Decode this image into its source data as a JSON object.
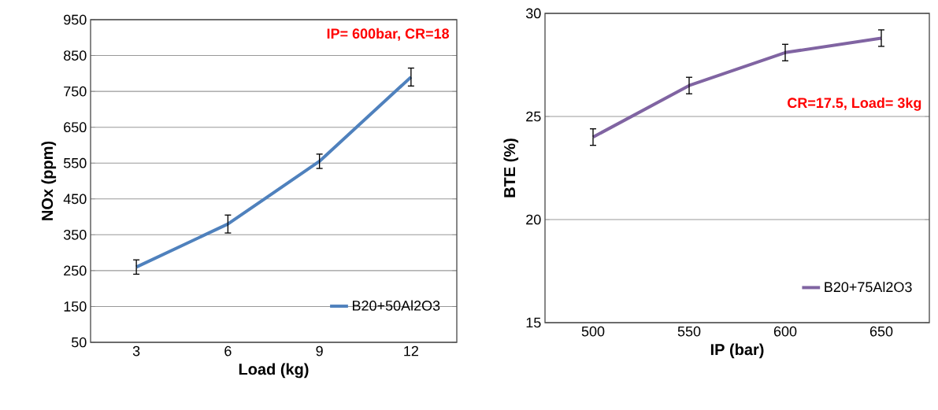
{
  "chart_data": [
    {
      "type": "line",
      "xlabel": "Load (kg)",
      "ylabel": "NOx (ppm)",
      "categories": [
        "3",
        "6",
        "9",
        "12"
      ],
      "series": [
        {
          "name": "B20+50Al2O3",
          "color": "#4f81bd",
          "values": [
            260,
            380,
            555,
            790
          ],
          "errors": [
            20,
            25,
            20,
            25
          ]
        }
      ],
      "ylim": [
        50,
        950
      ],
      "yticks": [
        50,
        150,
        250,
        350,
        450,
        550,
        650,
        750,
        850,
        950
      ],
      "grid": "y",
      "legend": "bottom right",
      "annotations": [
        "IP= 600bar, CR=18"
      ]
    },
    {
      "type": "line",
      "xlabel": "IP (bar)",
      "ylabel": "BTE (%)",
      "categories": [
        "500",
        "550",
        "600",
        "650"
      ],
      "series": [
        {
          "name": "B20+75Al2O3",
          "color": "#8064a2",
          "values": [
            24.0,
            26.5,
            28.1,
            28.8
          ],
          "errors": [
            0.4,
            0.4,
            0.4,
            0.4
          ]
        }
      ],
      "ylim": [
        15,
        30
      ],
      "yticks": [
        15,
        20,
        25,
        30
      ],
      "grid": "y",
      "legend": "bottom right",
      "annotations": [
        "CR=17.5, Load= 3kg"
      ]
    }
  ]
}
